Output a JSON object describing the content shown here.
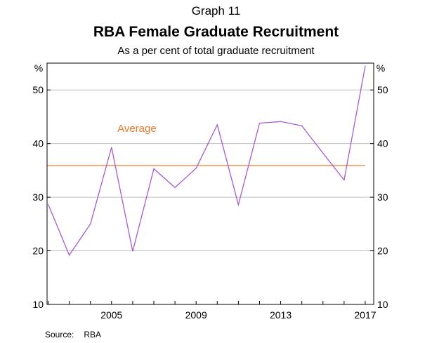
{
  "header": {
    "graph_number": "Graph 11",
    "title": "RBA Female Graduate Recruitment",
    "subtitle": "As a per cent of total graduate recruitment"
  },
  "footer": {
    "source_label": "Source:",
    "source_value": "RBA"
  },
  "chart_data": {
    "type": "line",
    "left_unit": "%",
    "right_unit": "%",
    "xlim": [
      2001.95,
      2017.4
    ],
    "ylim": [
      10,
      55
    ],
    "yticks": [
      10,
      20,
      30,
      40,
      50
    ],
    "xtick_labels": [
      "2005",
      "2009",
      "2013",
      "2017"
    ],
    "x": [
      2002,
      2003,
      2004,
      2005,
      2006,
      2007,
      2008,
      2009,
      2010,
      2011,
      2012,
      2013,
      2014,
      2015,
      2016,
      2017
    ],
    "series": [
      {
        "color": "#a65ad6",
        "values": [
          28.7,
          19.2,
          25.0,
          39.3,
          19.9,
          35.3,
          31.8,
          35.4,
          43.5,
          28.6,
          43.8,
          44.1,
          43.3,
          38.2,
          33.2,
          54.5
        ]
      }
    ],
    "reference_line": {
      "label": "Average",
      "value": 35.9,
      "color": "#f07828"
    },
    "grid": true,
    "gridline_color": "#bfbfbf"
  }
}
